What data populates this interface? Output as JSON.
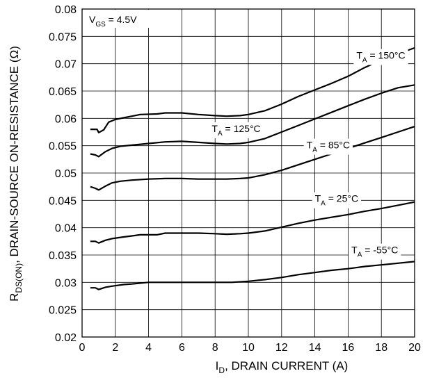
{
  "chart_data": {
    "type": "line",
    "x_axis": {
      "label_main": "I",
      "label_sub": "D",
      "label_rest": ", DRAIN CURRENT (A)",
      "ticks": [
        0,
        2,
        4,
        6,
        8,
        10,
        12,
        14,
        16,
        18,
        20
      ],
      "tick_labels": [
        "0",
        "2",
        "4",
        "6",
        "8",
        "10",
        "12",
        "14",
        "16",
        "18",
        "20"
      ],
      "range": [
        0,
        20
      ]
    },
    "y_axis": {
      "label_main": "R",
      "label_sub": "DS(ON)",
      "label_rest": ", DRAIN-SOURCE ON-RESISTANCE (Ω)",
      "ticks": [
        0.02,
        0.025,
        0.03,
        0.035,
        0.04,
        0.045,
        0.05,
        0.055,
        0.06,
        0.065,
        0.07,
        0.075,
        0.08
      ],
      "tick_labels": [
        "0.02",
        "0.025",
        "0.03",
        "0.035",
        "0.04",
        "0.045",
        "0.05",
        "0.055",
        "0.06",
        "0.065",
        "0.07",
        "0.075",
        "0.08"
      ],
      "range": [
        0.02,
        0.08
      ]
    },
    "grid": true,
    "condition": {
      "main": "V",
      "sub": "GS",
      "rest": " = 4.5V"
    },
    "series": [
      {
        "name": "T_A = 150°C",
        "label_main": "T",
        "label_sub": "A",
        "label_rest": " = 150°C",
        "points": [
          [
            0.5,
            0.058
          ],
          [
            0.9,
            0.058
          ],
          [
            1.0,
            0.0574
          ],
          [
            1.3,
            0.0579
          ],
          [
            1.6,
            0.0593
          ],
          [
            2.0,
            0.0598
          ],
          [
            2.5,
            0.0601
          ],
          [
            3.0,
            0.0604
          ],
          [
            3.5,
            0.0607
          ],
          [
            4.5,
            0.0608
          ],
          [
            5.0,
            0.061
          ],
          [
            6.0,
            0.061
          ],
          [
            7.0,
            0.0607
          ],
          [
            8.0,
            0.0605
          ],
          [
            8.7,
            0.0604
          ],
          [
            9.5,
            0.0605
          ],
          [
            10.0,
            0.0607
          ],
          [
            11.0,
            0.0614
          ],
          [
            12.0,
            0.0626
          ],
          [
            13.0,
            0.064
          ],
          [
            14.0,
            0.0652
          ],
          [
            15.0,
            0.0664
          ],
          [
            16.0,
            0.0677
          ],
          [
            17.0,
            0.0693
          ],
          [
            18.0,
            0.0707
          ],
          [
            19.0,
            0.0718
          ],
          [
            20.0,
            0.0729
          ]
        ],
        "label_at": [
          16.5,
          0.0709
        ]
      },
      {
        "name": "T_A = 125°C",
        "label_main": "T",
        "label_sub": "A",
        "label_rest": " = 125°C",
        "points": [
          [
            0.5,
            0.0535
          ],
          [
            0.8,
            0.0533
          ],
          [
            1.0,
            0.053
          ],
          [
            1.4,
            0.0539
          ],
          [
            1.8,
            0.0545
          ],
          [
            2.3,
            0.0549
          ],
          [
            3.0,
            0.0551
          ],
          [
            4.0,
            0.0554
          ],
          [
            5.0,
            0.0557
          ],
          [
            6.0,
            0.0558
          ],
          [
            7.0,
            0.0556
          ],
          [
            8.0,
            0.0554
          ],
          [
            8.7,
            0.0553
          ],
          [
            9.5,
            0.0554
          ],
          [
            10.0,
            0.0556
          ],
          [
            11.0,
            0.0563
          ],
          [
            12.0,
            0.0575
          ],
          [
            13.0,
            0.0587
          ],
          [
            14.0,
            0.0599
          ],
          [
            15.0,
            0.0611
          ],
          [
            16.0,
            0.0623
          ],
          [
            17.0,
            0.0635
          ],
          [
            18.0,
            0.0646
          ],
          [
            19.0,
            0.0656
          ],
          [
            20.0,
            0.0661
          ]
        ],
        "label_at": [
          7.8,
          0.0575
        ]
      },
      {
        "name": "T_A = 85°C",
        "label_main": "T",
        "label_sub": "A",
        "label_rest": " = 85°C",
        "points": [
          [
            0.5,
            0.0475
          ],
          [
            0.8,
            0.0472
          ],
          [
            1.0,
            0.0469
          ],
          [
            1.4,
            0.0476
          ],
          [
            1.8,
            0.0482
          ],
          [
            2.3,
            0.0485
          ],
          [
            3.0,
            0.0487
          ],
          [
            4.0,
            0.0489
          ],
          [
            5.0,
            0.049
          ],
          [
            6.0,
            0.049
          ],
          [
            7.0,
            0.0489
          ],
          [
            8.0,
            0.0489
          ],
          [
            8.7,
            0.0489
          ],
          [
            9.5,
            0.049
          ],
          [
            10.0,
            0.0491
          ],
          [
            11.0,
            0.0497
          ],
          [
            12.0,
            0.0505
          ],
          [
            13.0,
            0.0515
          ],
          [
            14.0,
            0.0525
          ],
          [
            15.0,
            0.0535
          ],
          [
            16.0,
            0.0545
          ],
          [
            17.0,
            0.0555
          ],
          [
            18.0,
            0.0565
          ],
          [
            19.0,
            0.0575
          ],
          [
            20.0,
            0.0585
          ]
        ],
        "label_at": [
          13.5,
          0.0545
        ]
      },
      {
        "name": "T_A = 25°C",
        "label_main": "T",
        "label_sub": "A",
        "label_rest": " = 25°C",
        "points": [
          [
            0.5,
            0.0375
          ],
          [
            0.8,
            0.0375
          ],
          [
            1.0,
            0.0372
          ],
          [
            1.4,
            0.0377
          ],
          [
            1.8,
            0.038
          ],
          [
            2.5,
            0.0383
          ],
          [
            3.0,
            0.0385
          ],
          [
            3.5,
            0.0387
          ],
          [
            4.5,
            0.0387
          ],
          [
            5.0,
            0.039
          ],
          [
            6.0,
            0.039
          ],
          [
            7.0,
            0.039
          ],
          [
            8.0,
            0.0389
          ],
          [
            8.7,
            0.0388
          ],
          [
            9.5,
            0.0389
          ],
          [
            10.0,
            0.039
          ],
          [
            11.0,
            0.0394
          ],
          [
            12.0,
            0.0401
          ],
          [
            13.0,
            0.0408
          ],
          [
            14.0,
            0.0414
          ],
          [
            15.0,
            0.0419
          ],
          [
            16.0,
            0.0424
          ],
          [
            17.0,
            0.043
          ],
          [
            18.0,
            0.0435
          ],
          [
            19.0,
            0.0441
          ],
          [
            20.0,
            0.0447
          ]
        ],
        "label_at": [
          14.0,
          0.0447
        ]
      },
      {
        "name": "T_A = -55°C",
        "label_main": "T",
        "label_sub": "A",
        "label_rest": " = -55°C",
        "points": [
          [
            0.5,
            0.029
          ],
          [
            0.8,
            0.029
          ],
          [
            1.0,
            0.0287
          ],
          [
            1.4,
            0.0291
          ],
          [
            1.8,
            0.0293
          ],
          [
            2.5,
            0.0296
          ],
          [
            3.0,
            0.0297
          ],
          [
            4.0,
            0.03
          ],
          [
            5.0,
            0.03
          ],
          [
            6.0,
            0.03
          ],
          [
            7.0,
            0.03
          ],
          [
            8.0,
            0.03
          ],
          [
            9.0,
            0.03
          ],
          [
            10.0,
            0.0302
          ],
          [
            11.0,
            0.0305
          ],
          [
            12.0,
            0.0309
          ],
          [
            13.0,
            0.0314
          ],
          [
            14.0,
            0.0318
          ],
          [
            15.0,
            0.0322
          ],
          [
            16.0,
            0.0325
          ],
          [
            17.0,
            0.0329
          ],
          [
            18.0,
            0.0332
          ],
          [
            19.0,
            0.0335
          ],
          [
            20.0,
            0.0338
          ]
        ],
        "label_at": [
          16.2,
          0.0353
        ]
      }
    ]
  }
}
